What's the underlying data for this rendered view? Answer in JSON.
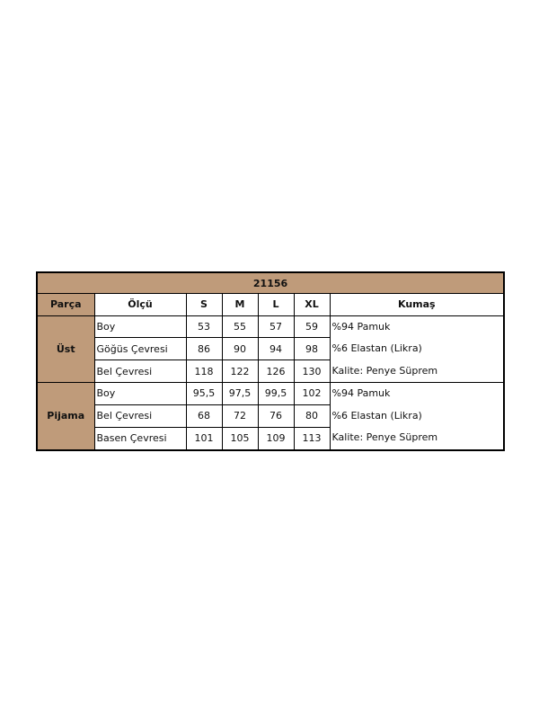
{
  "table": {
    "title": "21156",
    "headers": [
      "Parça",
      "Ölçü",
      "S",
      "M",
      "L",
      "XL",
      "Kumaş"
    ],
    "groups": [
      {
        "part": "Üst",
        "rows": [
          {
            "measure": "Boy",
            "values": [
              "53",
              "55",
              "57",
              "59"
            ]
          },
          {
            "measure": "Göğüs Çevresi",
            "values": [
              "86",
              "90",
              "94",
              "98"
            ]
          },
          {
            "measure": "Bel Çevresi",
            "values": [
              "118",
              "122",
              "126",
              "130"
            ]
          }
        ],
        "fabric": [
          "%94 Pamuk",
          "%6 Elastan (Likra)",
          "Kalite: Penye Süprem"
        ]
      },
      {
        "part": "Pijama",
        "rows": [
          {
            "measure": "Boy",
            "values": [
              "95,5",
              "97,5",
              "99,5",
              "102"
            ]
          },
          {
            "measure": "Bel Çevresi",
            "values": [
              "68",
              "72",
              "76",
              "80"
            ]
          },
          {
            "measure": "Basen Çevresi",
            "values": [
              "101",
              "105",
              "109",
              "113"
            ]
          }
        ],
        "fabric": [
          "%94 Pamuk",
          "%6 Elastan (Likra)",
          "Kalite: Penye Süprem"
        ]
      }
    ],
    "colors": {
      "header_fill": "#bf9b7a",
      "border": "#000000"
    }
  }
}
